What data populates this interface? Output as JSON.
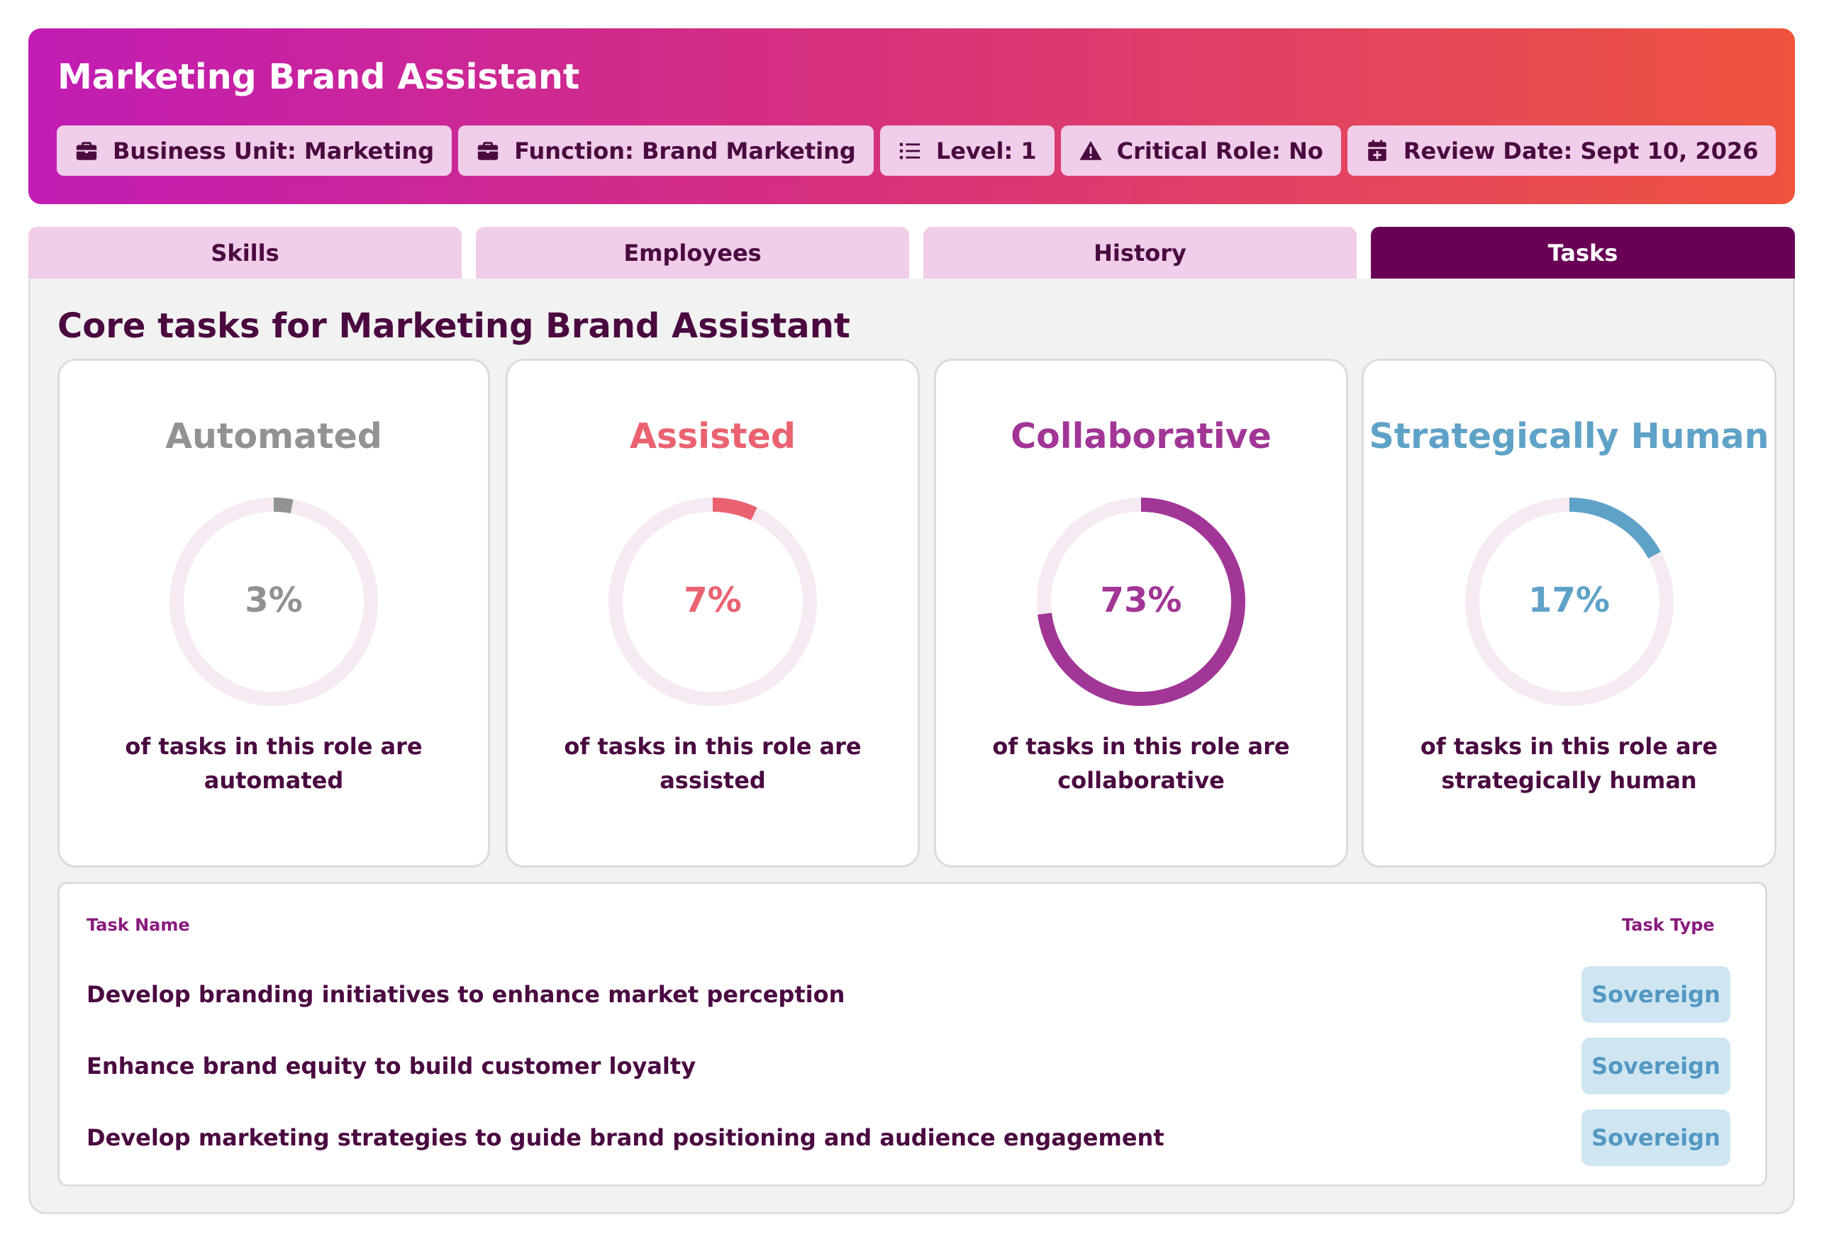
{
  "header": {
    "title": "Marketing Brand Assistant",
    "chips": [
      {
        "icon": "briefcase-icon",
        "label": "Business Unit: Marketing"
      },
      {
        "icon": "briefcase-icon",
        "label": "Function: Brand Marketing"
      },
      {
        "icon": "list-icon",
        "label": "Level: 1"
      },
      {
        "icon": "warning-icon",
        "label": "Critical Role: No"
      },
      {
        "icon": "calendar-icon",
        "label": "Review Date: Sept 10, 2026"
      }
    ]
  },
  "tabs": [
    {
      "label": "Skills",
      "active": false
    },
    {
      "label": "Employees",
      "active": false
    },
    {
      "label": "History",
      "active": false
    },
    {
      "label": "Tasks",
      "active": true
    }
  ],
  "main": {
    "section_title": "Core tasks for Marketing Brand Assistant",
    "cards": [
      {
        "title": "Automated",
        "percent": 3,
        "value_label": "3%",
        "desc_line1": "of tasks in this role are",
        "desc_line2": "automated",
        "color": "#929292"
      },
      {
        "title": "Assisted",
        "percent": 7,
        "value_label": "7%",
        "desc_line1": "of tasks in this role are",
        "desc_line2": "assisted",
        "color": "#ea6270"
      },
      {
        "title": "Collaborative",
        "percent": 73,
        "value_label": "73%",
        "desc_line1": "of tasks in this role are",
        "desc_line2": "collaborative",
        "color": "#a13696"
      },
      {
        "title": "Strategically Human",
        "percent": 17,
        "value_label": "17%",
        "desc_line1": "of tasks in this role are",
        "desc_line2": "strategically human",
        "color": "#5fa2c8"
      }
    ],
    "table": {
      "header_name": "Task Name",
      "header_type": "Task Type",
      "rows": [
        {
          "name": "Develop branding initiatives to enhance market perception",
          "type": "Sovereign"
        },
        {
          "name": "Enhance brand equity to build customer loyalty",
          "type": "Sovereign"
        },
        {
          "name": "Develop marketing strategies to guide brand positioning and audience engagement",
          "type": "Sovereign"
        }
      ]
    }
  },
  "colors": {
    "track": "#f6eaf3",
    "accent_dark": "#690055",
    "chip_bg": "#f0cde9"
  }
}
